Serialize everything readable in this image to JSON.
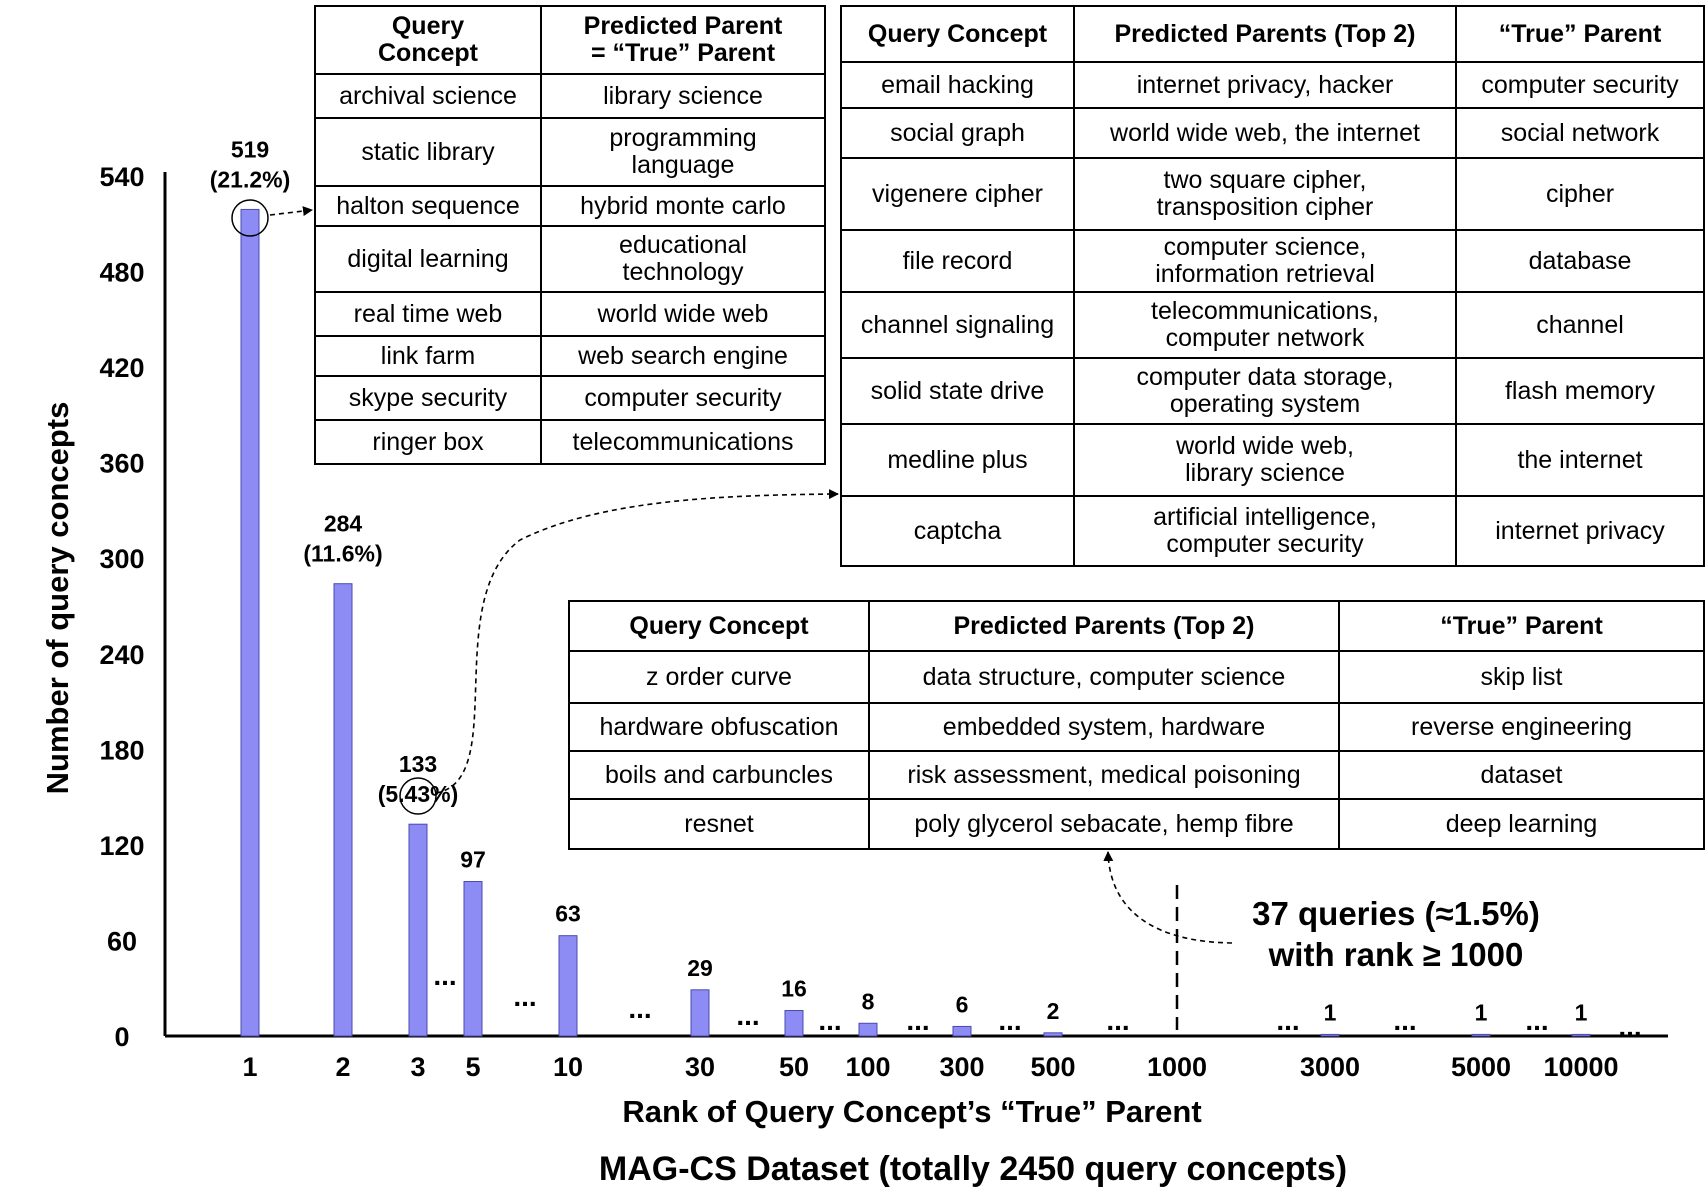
{
  "chart_data": {
    "type": "bar",
    "title": "MAG-CS Dataset (totally 2450 query concepts)",
    "xlabel": "Rank of Query Concept’s “True” Parent",
    "ylabel": "Number of query concepts",
    "ylim": [
      0,
      540
    ],
    "yticks": [
      "0",
      "60",
      "120",
      "180",
      "240",
      "300",
      "360",
      "420",
      "480",
      "540"
    ],
    "categories": [
      "1",
      "2",
      "3",
      "5",
      "10",
      "30",
      "50",
      "100",
      "300",
      "500",
      "1000",
      "3000",
      "5000",
      "10000"
    ],
    "bars": [
      {
        "rank": "1",
        "value": 519,
        "label": "519",
        "pct": "(21.2%)"
      },
      {
        "rank": "2",
        "value": 284,
        "label": "284",
        "pct": "(11.6%)"
      },
      {
        "rank": "3",
        "value": 133,
        "label": "133",
        "pct": "(5.43%)"
      },
      {
        "rank": "5",
        "value": 97,
        "label": "97",
        "pct": ""
      },
      {
        "rank": "10",
        "value": 63,
        "label": "63",
        "pct": ""
      },
      {
        "rank": "30",
        "value": 29,
        "label": "29",
        "pct": ""
      },
      {
        "rank": "50",
        "value": 16,
        "label": "16",
        "pct": ""
      },
      {
        "rank": "100",
        "value": 8,
        "label": "8",
        "pct": ""
      },
      {
        "rank": "300",
        "value": 6,
        "label": "6",
        "pct": ""
      },
      {
        "rank": "500",
        "value": 2,
        "label": "2",
        "pct": ""
      },
      {
        "rank": "3000",
        "value": 1,
        "label": "1",
        "pct": ""
      },
      {
        "rank": "5000",
        "value": 1,
        "label": "1",
        "pct": ""
      },
      {
        "rank": "10000",
        "value": 1,
        "label": "1",
        "pct": ""
      }
    ],
    "ellipsis": "...",
    "bar_color": "#8c8cf4",
    "annotation": {
      "line1": "37 queries (≈1.5%)",
      "line2": "with rank ≥ 1000"
    }
  },
  "tables": {
    "rank1": {
      "headers": [
        "Query\nConcept",
        "Predicted Parent\n= “True” Parent"
      ],
      "rows": [
        [
          "archival science",
          "library science"
        ],
        [
          "static library",
          "programming\nlanguage"
        ],
        [
          "halton sequence",
          "hybrid monte carlo"
        ],
        [
          "digital learning",
          "educational\ntechnology"
        ],
        [
          "real time web",
          "world wide web"
        ],
        [
          "link farm",
          "web search engine"
        ],
        [
          "skype security",
          "computer security"
        ],
        [
          "ringer box",
          "telecommunications"
        ]
      ]
    },
    "rank3": {
      "headers": [
        "Query Concept",
        "Predicted Parents (Top 2)",
        "“True” Parent"
      ],
      "rows": [
        [
          "email hacking",
          "internet privacy, hacker",
          "computer security"
        ],
        [
          "social graph",
          "world wide web, the internet",
          "social network"
        ],
        [
          "vigenere cipher",
          "two square cipher,\ntransposition cipher",
          "cipher"
        ],
        [
          "file record",
          "computer science,\ninformation retrieval",
          "database"
        ],
        [
          "channel signaling",
          "telecommunications,\ncomputer network",
          "channel"
        ],
        [
          "solid state drive",
          "computer data storage,\noperating system",
          "flash memory"
        ],
        [
          "medline plus",
          "world wide web,\nlibrary science",
          "the internet"
        ],
        [
          "captcha",
          "artificial intelligence,\ncomputer security",
          "internet privacy"
        ]
      ]
    },
    "rank1000": {
      "headers": [
        "Query Concept",
        "Predicted Parents (Top 2)",
        "“True” Parent"
      ],
      "rows": [
        [
          "z order curve",
          "data structure, computer science",
          "skip list"
        ],
        [
          "hardware obfuscation",
          "embedded system, hardware",
          "reverse engineering"
        ],
        [
          "boils and carbuncles",
          "risk assessment, medical poisoning",
          "dataset"
        ],
        [
          "resnet",
          "poly glycerol sebacate, hemp fibre",
          "deep learning"
        ]
      ]
    }
  }
}
